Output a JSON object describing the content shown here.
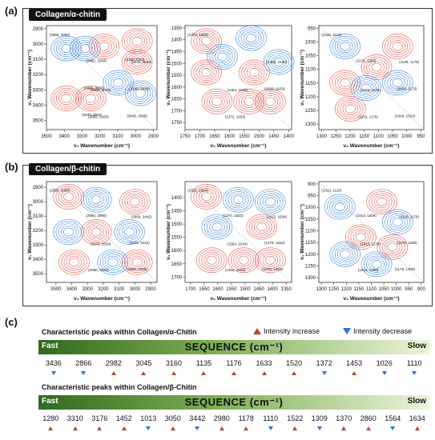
{
  "labels": {
    "a": "(a)",
    "b": "(b)",
    "c": "(c)"
  },
  "boxes": {
    "a_title": "Collagen/α-chitin",
    "b_title": "Collagen/β-chitin"
  },
  "axis": {
    "x": "ν₂ Wavenumber (cm⁻¹)",
    "y": "ν₁ Wavenumber (cm⁻¹)"
  },
  "chart_data": [
    {
      "type": "heatmap",
      "id": "a1",
      "xlim": [
        3500,
        2880
      ],
      "ylim": [
        2880,
        3560
      ],
      "xticks": [
        3500,
        3400,
        3300,
        3200,
        3100,
        3000,
        2900
      ],
      "yticks": [
        2900,
        3000,
        3100,
        3200,
        3300,
        3400,
        3500
      ],
      "annotations": [
        "(2866, 2982)",
        "(2866, 3045)",
        "(3045, 3160)",
        "(2982, 3160)",
        "(3160, 3436)",
        "(2982, 3294)",
        "(3045, 3436)",
        "(2866, 3436)",
        "(3160,3264)",
        "(3045,3264)"
      ]
    },
    {
      "type": "heatmap",
      "id": "a2",
      "xlim": [
        1750,
        1390
      ],
      "ylim": [
        1340,
        1780
      ],
      "xticks": [
        1750,
        1700,
        1650,
        1600,
        1550,
        1500,
        1450,
        1400
      ],
      "yticks": [
        1350,
        1400,
        1450,
        1500,
        1550,
        1600,
        1650,
        1700,
        1750
      ],
      "annotations": [
        "(1372, 1453)",
        "(1453, 1520)",
        "(1453, 1633)",
        "(1372, 1633)",
        "(1520, 1633)"
      ]
    },
    {
      "type": "heatmap",
      "id": "a3",
      "xlim": [
        1310,
        940
      ],
      "ylim": [
        940,
        1320
      ],
      "xticks": [
        1300,
        1250,
        1200,
        1150,
        1100,
        1050,
        1000,
        950
      ],
      "yticks": [
        950,
        1000,
        1050,
        1100,
        1150,
        1200,
        1250,
        1300
      ],
      "annotations": [
        "(1026, 1110)",
        "(1026, 1135)",
        "(1135, 1176)",
        "(1110, 1176)",
        "(1026, 1176)",
        "(1176, 1283)",
        "(1026, 1310)"
      ]
    },
    {
      "type": "heatmap",
      "id": "b1",
      "xlim": [
        3560,
        2860
      ],
      "ylim": [
        2860,
        3560
      ],
      "xticks": [
        3500,
        3400,
        3300,
        3200,
        3100,
        3000,
        2900
      ],
      "yticks": [
        2900,
        3000,
        3100,
        3200,
        3300,
        3400,
        3500
      ],
      "annotations": [
        "(2980, 3050)",
        "(3176, 3310)",
        "(3050, 3442)",
        "(2980, 3442)",
        "(3310, 3442)",
        "(2860, 2980)",
        "(2860, 3176)"
      ]
    },
    {
      "type": "heatmap",
      "id": "b2",
      "xlim": [
        1720,
        1330
      ],
      "ylim": [
        1340,
        1720
      ],
      "xticks": [
        1700,
        1650,
        1600,
        1550,
        1500,
        1450,
        1400,
        1350
      ],
      "yticks": [
        1400,
        1450,
        1500,
        1550,
        1600,
        1650,
        1700
      ],
      "annotations": [
        "(1522, 1564)",
        "(1564, 1634)",
        "(1522, 1634)",
        "(1452, 1634)",
        "(1379, 1634)",
        "(1370, 1522)",
        "(1370, 1452)"
      ]
    },
    {
      "type": "heatmap",
      "id": "b3",
      "xlim": [
        1310,
        890
      ],
      "ylim": [
        890,
        1320
      ],
      "xticks": [
        1300,
        1250,
        1200,
        1150,
        1100,
        1050,
        1000,
        950,
        900
      ],
      "yticks": [
        900,
        950,
        1000,
        1050,
        1100,
        1150,
        1200,
        1250,
        1300
      ],
      "annotations": [
        "(1013, 1110)",
        "(1013, 1178)",
        "(1110, 1178)",
        "(1013, 1280)",
        "(1178, 1280)",
        "(1013, 1309)",
        "(1178, 1309)"
      ]
    }
  ],
  "sequence": {
    "title_a": "Characteristic peaks within Collagen/α-Chitin",
    "title_b": "Characteristic peaks within Collagen/β-Chitin",
    "legend_up": "Intensity increase",
    "legend_down": "Intensity decrease",
    "fast": "Fast",
    "slow": "Slow",
    "seq": "SEQUENCE (cm⁻¹)",
    "up_color": "#b5482e",
    "down_color": "#2f72d6",
    "alpha": [
      {
        "v": "3436",
        "d": "down"
      },
      {
        "v": "2866",
        "d": "down"
      },
      {
        "v": "2982",
        "d": "up"
      },
      {
        "v": "3045",
        "d": "up"
      },
      {
        "v": "3160",
        "d": "up"
      },
      {
        "v": "1135",
        "d": "up"
      },
      {
        "v": "1176",
        "d": "up"
      },
      {
        "v": "1633",
        "d": "up"
      },
      {
        "v": "1520",
        "d": "up"
      },
      {
        "v": "1372",
        "d": "down"
      },
      {
        "v": "1453",
        "d": "up"
      },
      {
        "v": "1026",
        "d": "down"
      },
      {
        "v": "1110",
        "d": "down"
      }
    ],
    "beta": [
      {
        "v": "1280",
        "d": "up"
      },
      {
        "v": "3310",
        "d": "up"
      },
      {
        "v": "3176",
        "d": "up"
      },
      {
        "v": "1452",
        "d": "up"
      },
      {
        "v": "1013",
        "d": "down"
      },
      {
        "v": "3050",
        "d": "up"
      },
      {
        "v": "3442",
        "d": "down"
      },
      {
        "v": "2980",
        "d": "up"
      },
      {
        "v": "1178",
        "d": "up"
      },
      {
        "v": "1110",
        "d": "down"
      },
      {
        "v": "1522",
        "d": "up"
      },
      {
        "v": "1309",
        "d": "down"
      },
      {
        "v": "1370",
        "d": "up"
      },
      {
        "v": "2860",
        "d": "up"
      },
      {
        "v": "1564",
        "d": "down"
      },
      {
        "v": "1634",
        "d": "up"
      }
    ]
  }
}
